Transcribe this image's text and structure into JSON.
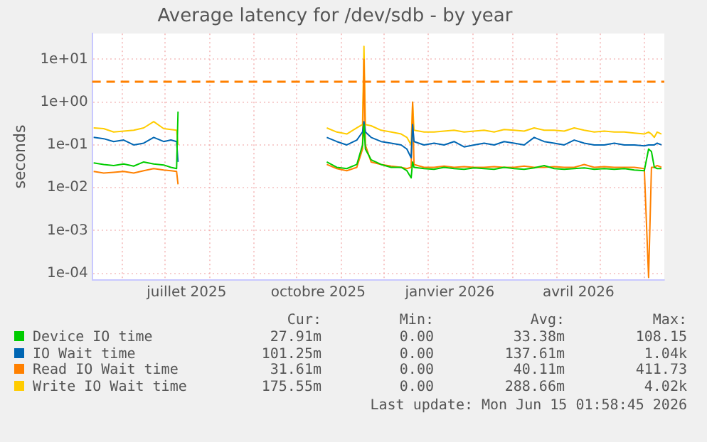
{
  "chart_data": {
    "type": "line",
    "title": "Average latency for /dev/sdb - by year",
    "ylabel": "seconds",
    "log": "y",
    "grid": true,
    "legend": "bottom",
    "marker": "none",
    "line_style": "solid",
    "xlim": [
      "2025-05-11",
      "2026-06-15"
    ],
    "ylim": [
      7e-05,
      40
    ],
    "xticks": [
      {
        "value": "2025-06-01",
        "label": null
      },
      {
        "value": "2025-07-01",
        "label": null
      },
      {
        "value": "2025-07-16",
        "label": "juillet 2025"
      },
      {
        "value": "2025-08-01",
        "label": null
      },
      {
        "value": "2025-09-01",
        "label": null
      },
      {
        "value": "2025-10-01",
        "label": null
      },
      {
        "value": "2025-10-16",
        "label": "octobre 2025"
      },
      {
        "value": "2025-11-01",
        "label": null
      },
      {
        "value": "2025-12-01",
        "label": null
      },
      {
        "value": "2026-01-01",
        "label": null
      },
      {
        "value": "2026-01-16",
        "label": "janvier 2026"
      },
      {
        "value": "2026-02-01",
        "label": null
      },
      {
        "value": "2026-03-01",
        "label": null
      },
      {
        "value": "2026-04-01",
        "label": null
      },
      {
        "value": "2026-04-16",
        "label": "avril 2026"
      },
      {
        "value": "2026-05-01",
        "label": null
      },
      {
        "value": "2026-06-01",
        "label": null
      }
    ],
    "yticks": [
      {
        "value": 0.0001,
        "label": "1e-04"
      },
      {
        "value": 0.001,
        "label": "1e-03"
      },
      {
        "value": 0.01,
        "label": "1e-02"
      },
      {
        "value": 0.1,
        "label": "1e-01"
      },
      {
        "value": 1,
        "label": "1e+00"
      },
      {
        "value": 10,
        "label": "1e+01"
      }
    ],
    "x": [
      "2025-05-12",
      "2025-05-19",
      "2025-05-26",
      "2025-06-02",
      "2025-06-09",
      "2025-06-16",
      "2025-06-23",
      "2025-06-30",
      "2025-07-05",
      "2025-07-09",
      "2025-07-10",
      "2025-08-15",
      "2025-10-22",
      "2025-10-29",
      "2025-11-05",
      "2025-11-12",
      "2025-11-16",
      "2025-11-17",
      "2025-11-18",
      "2025-11-22",
      "2025-11-29",
      "2025-12-06",
      "2025-12-13",
      "2025-12-17",
      "2025-12-20",
      "2025-12-21",
      "2025-12-22",
      "2025-12-29",
      "2026-01-05",
      "2026-01-12",
      "2026-01-19",
      "2026-01-26",
      "2026-02-02",
      "2026-02-09",
      "2026-02-16",
      "2026-02-23",
      "2026-03-02",
      "2026-03-09",
      "2026-03-16",
      "2026-03-23",
      "2026-03-30",
      "2026-04-06",
      "2026-04-13",
      "2026-04-20",
      "2026-04-27",
      "2026-05-04",
      "2026-05-11",
      "2026-05-18",
      "2026-05-25",
      "2026-06-01",
      "2026-06-04",
      "2026-06-06",
      "2026-06-08",
      "2026-06-10",
      "2026-06-13"
    ],
    "series": [
      {
        "name": "Device IO time",
        "color": "#00cc00",
        "values": [
          0.038,
          0.035,
          0.033,
          0.036,
          0.032,
          0.04,
          0.036,
          0.034,
          0.03,
          0.028,
          0.6,
          null,
          0.04,
          0.03,
          0.028,
          0.035,
          0.1,
          0.3,
          0.08,
          0.045,
          0.035,
          0.03,
          0.03,
          0.025,
          0.017,
          0.04,
          0.03,
          0.028,
          0.027,
          0.03,
          0.028,
          0.027,
          0.029,
          0.028,
          0.027,
          0.03,
          0.028,
          0.027,
          0.029,
          0.033,
          0.028,
          0.027,
          0.028,
          0.029,
          0.027,
          0.028,
          0.027,
          0.028,
          0.026,
          0.025,
          0.08,
          0.07,
          0.03,
          0.028,
          0.028
        ]
      },
      {
        "name": "IO Wait time",
        "color": "#0066b3",
        "values": [
          0.15,
          0.14,
          0.12,
          0.13,
          0.1,
          0.11,
          0.15,
          0.12,
          0.13,
          0.12,
          0.04,
          null,
          0.15,
          0.12,
          0.1,
          0.13,
          0.2,
          0.35,
          0.2,
          0.15,
          0.12,
          0.11,
          0.1,
          0.08,
          0.05,
          0.3,
          0.12,
          0.1,
          0.11,
          0.1,
          0.12,
          0.09,
          0.1,
          0.11,
          0.1,
          0.12,
          0.11,
          0.1,
          0.15,
          0.12,
          0.11,
          0.1,
          0.13,
          0.11,
          0.1,
          0.1,
          0.11,
          0.1,
          0.1,
          0.095,
          0.1,
          0.1,
          0.1,
          0.11,
          0.1
        ]
      },
      {
        "name": "Read IO Wait time",
        "color": "#ff8000",
        "values": [
          0.024,
          0.022,
          0.023,
          0.024,
          0.022,
          0.025,
          0.028,
          0.026,
          0.025,
          0.024,
          0.012,
          null,
          0.035,
          0.028,
          0.025,
          0.03,
          0.08,
          10,
          0.1,
          0.04,
          0.035,
          0.032,
          0.03,
          0.028,
          0.03,
          1,
          0.035,
          0.03,
          0.03,
          0.032,
          0.03,
          0.031,
          0.03,
          0.03,
          0.031,
          0.03,
          0.03,
          0.032,
          0.03,
          0.03,
          0.031,
          0.03,
          0.03,
          0.035,
          0.03,
          0.031,
          0.03,
          0.03,
          0.03,
          0.028,
          8e-05,
          0.03,
          0.03,
          0.033,
          0.03
        ]
      },
      {
        "name": "Write IO Wait time",
        "color": "#ffcc00",
        "values": [
          0.25,
          0.24,
          0.2,
          0.21,
          0.22,
          0.25,
          0.35,
          0.24,
          0.23,
          0.22,
          0.1,
          null,
          0.25,
          0.2,
          0.18,
          0.25,
          0.3,
          20,
          0.3,
          0.28,
          0.22,
          0.2,
          0.18,
          0.15,
          0.1,
          1,
          0.22,
          0.2,
          0.2,
          0.21,
          0.22,
          0.2,
          0.21,
          0.22,
          0.2,
          0.23,
          0.22,
          0.21,
          0.25,
          0.22,
          0.22,
          0.21,
          0.25,
          0.22,
          0.2,
          0.21,
          0.2,
          0.2,
          0.19,
          0.18,
          0.2,
          0.18,
          0.15,
          0.2,
          0.18
        ]
      }
    ],
    "ref_lines": [
      {
        "axis": "y",
        "value": 3,
        "color": "#ff8000",
        "line_style": "dashed"
      }
    ],
    "annotations": [
      "Cur:",
      "Min:",
      "Avg:",
      "Max:",
      "27.91m",
      "0.00",
      "33.38m",
      "108.15",
      "101.25m",
      "0.00",
      "137.61m",
      "1.04k",
      "31.61m",
      "0.00",
      "40.11m",
      "411.73",
      "175.55m",
      "0.00",
      "288.66m",
      "4.02k",
      "Last update: Mon Jun 15 01:58:45 2026"
    ]
  }
}
